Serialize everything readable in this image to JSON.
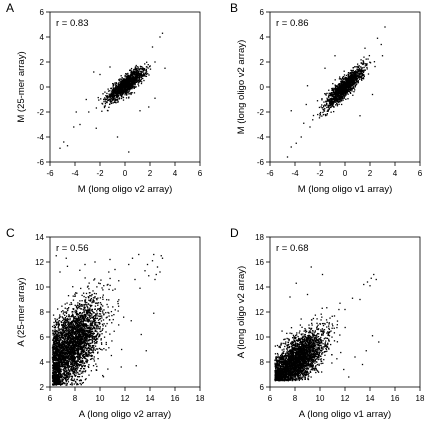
{
  "chart_data": [
    {
      "type": "scatter",
      "panel_label": "A",
      "annotation": "r = 0.83",
      "xlabel": "M (long oligo v2 array)",
      "ylabel": "M (25-mer array)",
      "xlim": [
        -6,
        6
      ],
      "ylim": [
        -6,
        6
      ],
      "xticks": [
        "-6",
        "-4",
        "-2",
        "0",
        "2",
        "4",
        "6"
      ],
      "yticks": [
        "-6",
        "-4",
        "-2",
        "0",
        "2",
        "4",
        "6"
      ],
      "cloud": {
        "n": 1300,
        "cx": 0.1,
        "cy": 0.2,
        "sx": 0.75,
        "sy": 0.65,
        "r": 0.83
      },
      "points": [
        [
          -4.9,
          -4.4
        ],
        [
          -5.2,
          -4.9
        ],
        [
          -4.6,
          -4.7
        ],
        [
          -4.1,
          -3.2
        ],
        [
          -3.6,
          -3.0
        ],
        [
          -3.9,
          -2.0
        ],
        [
          -2.3,
          -3.3
        ],
        [
          -0.6,
          -4.0
        ],
        [
          0.3,
          -5.2
        ],
        [
          -2.9,
          -2.0
        ],
        [
          -3.1,
          -1.0
        ],
        [
          -2.5,
          1.2
        ],
        [
          -1.2,
          1.6
        ],
        [
          -2.0,
          1.0
        ],
        [
          2.2,
          3.2
        ],
        [
          2.8,
          4.0
        ],
        [
          3.0,
          4.3
        ],
        [
          2.4,
          2.0
        ],
        [
          3.2,
          1.5
        ],
        [
          1.9,
          -1.6
        ],
        [
          2.4,
          -0.9
        ],
        [
          1.2,
          -1.9
        ]
      ]
    },
    {
      "type": "scatter",
      "panel_label": "B",
      "annotation": "r = 0.86",
      "xlabel": "M (long oligo v1 array)",
      "ylabel": "M (long oligo v2 array)",
      "xlim": [
        -6,
        6
      ],
      "ylim": [
        -6,
        6
      ],
      "xticks": [
        "-6",
        "-4",
        "-2",
        "0",
        "2",
        "4",
        "6"
      ],
      "yticks": [
        "-6",
        "-4",
        "-2",
        "0",
        "2",
        "4",
        "6"
      ],
      "cloud": {
        "n": 1300,
        "cx": 0.0,
        "cy": 0.0,
        "sx": 0.75,
        "sy": 0.8,
        "r": 0.86
      },
      "points": [
        [
          -4.6,
          -5.6
        ],
        [
          -4.3,
          -4.8
        ],
        [
          -3.9,
          -4.5
        ],
        [
          -3.5,
          -4.0
        ],
        [
          -3.3,
          -2.9
        ],
        [
          -2.8,
          -3.2
        ],
        [
          -4.3,
          -1.9
        ],
        [
          -3.1,
          -1.4
        ],
        [
          -3.0,
          0.1
        ],
        [
          -1.6,
          1.5
        ],
        [
          -0.8,
          2.5
        ],
        [
          1.2,
          -2.3
        ],
        [
          2.2,
          -0.6
        ],
        [
          2.9,
          3.4
        ],
        [
          3.2,
          4.8
        ],
        [
          2.6,
          3.9
        ],
        [
          3.0,
          2.5
        ],
        [
          1.6,
          3.1
        ],
        [
          -2.2,
          -1.1
        ]
      ]
    },
    {
      "type": "scatter",
      "panel_label": "C",
      "annotation": "r = 0.56",
      "xlabel": "A (long oligo v2 array)",
      "ylabel": "A (25-mer array)",
      "xlim": [
        6,
        18
      ],
      "ylim": [
        2,
        14
      ],
      "xticks": [
        "6",
        "8",
        "10",
        "12",
        "14",
        "16",
        "18"
      ],
      "yticks": [
        "2",
        "4",
        "6",
        "8",
        "10",
        "12",
        "14"
      ],
      "cloud": {
        "n": 3400,
        "cx": 7.7,
        "cy": 5.3,
        "sx": 1.25,
        "sy": 1.8,
        "r": 0.56,
        "xmin": 6.2,
        "ymin": 2.15
      },
      "points": [
        [
          13.8,
          11.8
        ],
        [
          14.2,
          12.1
        ],
        [
          14.6,
          11.6
        ],
        [
          14.9,
          12.5
        ],
        [
          14.5,
          11.0
        ],
        [
          13.9,
          10.9
        ],
        [
          14.8,
          11.2
        ],
        [
          15.0,
          12.3
        ],
        [
          14.3,
          12.6
        ],
        [
          13.6,
          11.3
        ],
        [
          12.8,
          10.6
        ],
        [
          13.2,
          9.9
        ],
        [
          11.5,
          10.5
        ],
        [
          12.3,
          11.8
        ],
        [
          10.8,
          12.2
        ],
        [
          9.6,
          12.0
        ],
        [
          8.8,
          11.8
        ],
        [
          7.3,
          12.3
        ],
        [
          6.5,
          12.5
        ],
        [
          6.8,
          11.2
        ],
        [
          12.5,
          7.3
        ],
        [
          13.3,
          6.2
        ],
        [
          14.3,
          7.9
        ],
        [
          13.7,
          4.9
        ],
        [
          12.9,
          3.7
        ],
        [
          11.7,
          3.6
        ],
        [
          12.6,
          12.3
        ],
        [
          13.1,
          12.6
        ],
        [
          11.2,
          11.4
        ],
        [
          14.4,
          10.6
        ]
      ]
    },
    {
      "type": "scatter",
      "panel_label": "D",
      "annotation": "r = 0.68",
      "xlabel": "A (long oligo v1 array)",
      "ylabel": "A (long oligo v2 array)",
      "xlim": [
        6,
        18
      ],
      "ylim": [
        6,
        18
      ],
      "xticks": [
        "6",
        "8",
        "10",
        "12",
        "14",
        "16",
        "18"
      ],
      "yticks": [
        "6",
        "8",
        "10",
        "12",
        "14",
        "16",
        "18"
      ],
      "cloud": {
        "n": 3000,
        "cx": 8.0,
        "cy": 8.0,
        "sx": 1.2,
        "sy": 1.25,
        "r": 0.68,
        "xmin": 6.4,
        "ymin": 6.5
      },
      "points": [
        [
          13.8,
          14.4
        ],
        [
          14.1,
          14.7
        ],
        [
          14.3,
          15.0
        ],
        [
          14.0,
          14.1
        ],
        [
          13.5,
          14.2
        ],
        [
          14.5,
          14.6
        ],
        [
          13.2,
          13.0
        ],
        [
          12.6,
          13.1
        ],
        [
          9.3,
          15.6
        ],
        [
          10.2,
          15.0
        ],
        [
          8.1,
          14.3
        ],
        [
          7.6,
          13.2
        ],
        [
          9.0,
          13.4
        ],
        [
          11.6,
          12.7
        ],
        [
          12.0,
          12.2
        ],
        [
          13.4,
          7.8
        ],
        [
          12.8,
          8.4
        ],
        [
          13.7,
          8.9
        ],
        [
          11.9,
          7.4
        ],
        [
          14.2,
          10.1
        ],
        [
          14.7,
          9.6
        ],
        [
          12.3,
          6.8
        ]
      ]
    }
  ]
}
